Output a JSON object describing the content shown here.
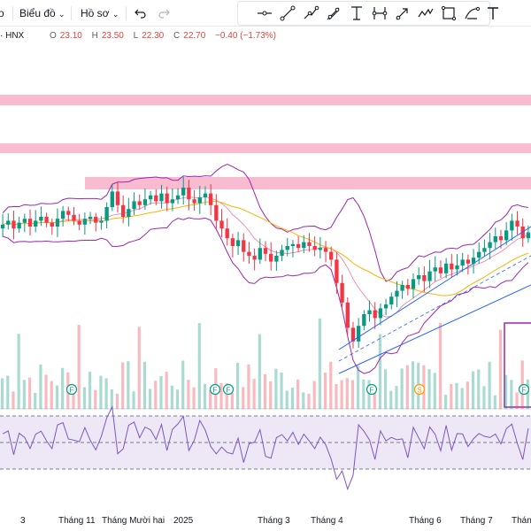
{
  "toolbar": {
    "chart_menu_label": "Biểu đồ",
    "profile_menu_label": "Hồ sơ",
    "undo_icon": "undo-icon",
    "redo_icon": "redo-icon",
    "drawing_tools": [
      "horizontal-ray-icon",
      "trend-line-icon",
      "path-icon",
      "brush-icon",
      "text-fibonacci-icon",
      "date-range-icon",
      "arrow-icon",
      "wave-pattern-icon",
      "rectangle-icon",
      "shapes-icon",
      "text-icon"
    ]
  },
  "legend": {
    "symbol": "· HNX",
    "open_label": "O",
    "open": "23.10",
    "high_label": "H",
    "high": "23.50",
    "low_label": "L",
    "low": "22.30",
    "close_label": "C",
    "close": "22.70",
    "change": "−0.40 (−1.73%)"
  },
  "colors": {
    "up": "#089981",
    "down": "#f23645",
    "bollinger": "#9c27b0",
    "ma": "#f7b500",
    "zone": "#f8bbd0",
    "rsi_line": "#7e57c2",
    "rsi_fill": "#ede7f6",
    "channel": "#2962ff",
    "volume_ma": "#4caf50"
  },
  "x_axis": {
    "ticks": [
      "3",
      "Tháng 11",
      "Tháng Mười hai",
      "2025",
      "Tháng 3",
      "Tháng 4",
      "Tháng 6",
      "Tháng 7",
      "Tháng"
    ]
  },
  "event_markers": [
    "F",
    "F",
    "F",
    "F",
    "S",
    "F"
  ],
  "chart_data": {
    "type": "candlestick",
    "price_series": [
      21.6,
      21.8,
      21.4,
      21.7,
      21.9,
      21.5,
      21.8,
      22.0,
      21.7,
      21.5,
      21.9,
      22.3,
      22.1,
      21.8,
      21.6,
      21.9,
      22.0,
      21.7,
      21.8,
      22.5,
      23.3,
      22.6,
      22.0,
      22.4,
      22.8,
      22.6,
      22.9,
      23.1,
      22.8,
      23.2,
      22.7,
      22.9,
      23.1,
      23.5,
      22.9,
      22.7,
      23.0,
      23.2,
      22.6,
      21.8,
      21.4,
      20.9,
      20.5,
      20.8,
      20.2,
      20.0,
      19.8,
      20.4,
      20.1,
      19.7,
      20.0,
      20.3,
      20.5,
      20.6,
      20.4,
      20.7,
      20.5,
      20.3,
      20.4,
      20.2,
      19.8,
      18.6,
      17.6,
      16.3,
      15.6,
      16.4,
      17.0,
      17.2,
      16.8,
      17.3,
      17.5,
      17.9,
      18.2,
      18.5,
      18.3,
      18.8,
      19.0,
      18.7,
      19.2,
      19.4,
      19.1,
      19.6,
      19.3,
      19.5,
      19.8,
      19.6,
      19.9,
      20.2,
      20.4,
      20.7,
      21.0,
      20.8,
      21.3,
      21.8,
      21.5,
      20.9,
      21.2
    ],
    "rsi_levels": [
      30,
      50,
      70
    ]
  }
}
